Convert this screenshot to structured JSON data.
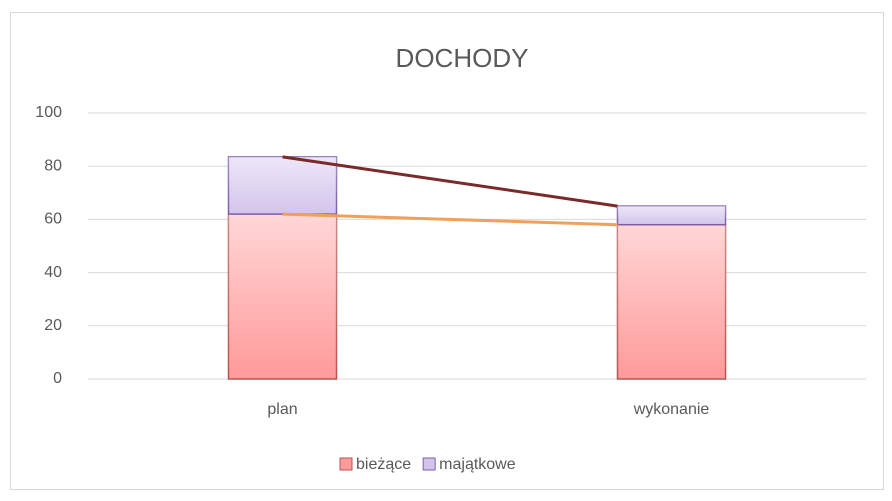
{
  "chart_data": {
    "type": "stacked_bar",
    "title": "DOCHODY",
    "categories": [
      "plan",
      "wykonanie"
    ],
    "series": [
      {
        "name": "bieżące",
        "color": "#ff9a9a",
        "values": [
          62,
          58
        ]
      },
      {
        "name": "majątkowe",
        "color": "#d3c4ec",
        "values": [
          21.5,
          7
        ]
      }
    ],
    "ylim": [
      0,
      100
    ],
    "yticks": [
      0,
      20,
      40,
      60,
      80,
      100
    ],
    "grid": true,
    "legend": "bottom"
  }
}
